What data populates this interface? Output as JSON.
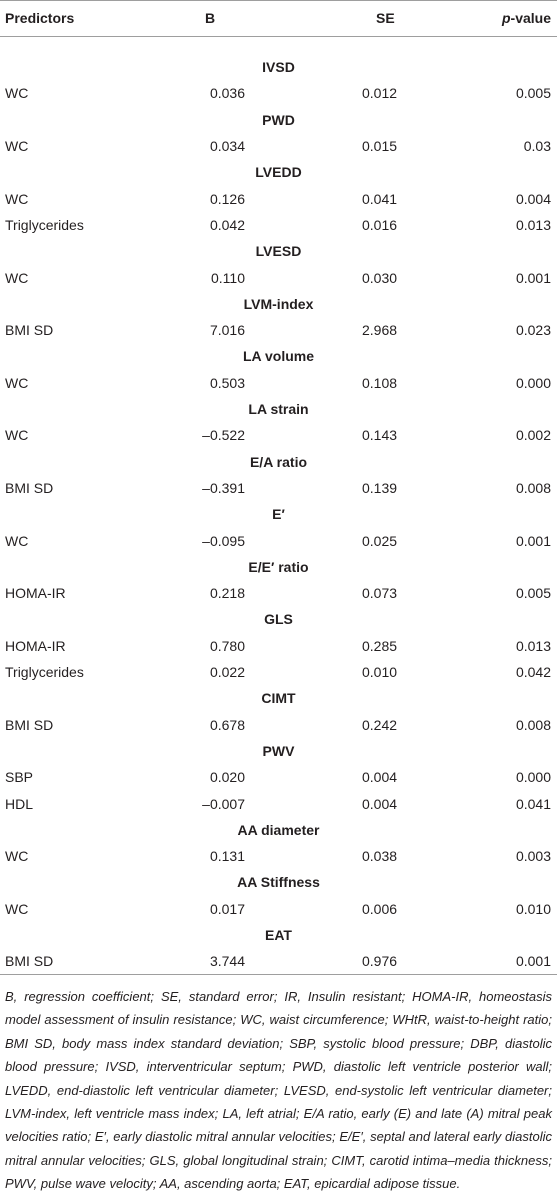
{
  "header": {
    "columns": [
      "Predictors",
      "B",
      "SE"
    ],
    "p_value": {
      "italic": "p",
      "text": "-value"
    }
  },
  "groups": [
    {
      "name": "IVSD",
      "rows": [
        [
          "WC",
          "0.036",
          "0.012",
          "0.005"
        ]
      ]
    },
    {
      "name": "PWD",
      "rows": [
        [
          "WC",
          "0.034",
          "0.015",
          "0.03"
        ]
      ]
    },
    {
      "name": "LVEDD",
      "rows": [
        [
          "WC",
          "0.126",
          "0.041",
          "0.004"
        ],
        [
          "Triglycerides",
          "0.042",
          "0.016",
          "0.013"
        ]
      ]
    },
    {
      "name": "LVESD",
      "rows": [
        [
          "WC",
          "0.110",
          "0.030",
          "0.001"
        ]
      ]
    },
    {
      "name": "LVM-index",
      "rows": [
        [
          "BMI SD",
          "7.016",
          "2.968",
          "0.023"
        ]
      ]
    },
    {
      "name": "LA volume",
      "rows": [
        [
          "WC",
          "0.503",
          "0.108",
          "0.000"
        ]
      ]
    },
    {
      "name": "LA strain",
      "rows": [
        [
          "WC",
          "–0.522",
          "0.143",
          "0.002"
        ]
      ]
    },
    {
      "name": "E/A ratio",
      "rows": [
        [
          "BMI SD",
          "–0.391",
          "0.139",
          "0.008"
        ]
      ]
    },
    {
      "name": "E′",
      "rows": [
        [
          "WC",
          "–0.095",
          "0.025",
          "0.001"
        ]
      ]
    },
    {
      "name": "E/E′ ratio",
      "rows": [
        [
          "HOMA-IR",
          "0.218",
          "0.073",
          "0.005"
        ]
      ]
    },
    {
      "name": "GLS",
      "rows": [
        [
          "HOMA-IR",
          "0.780",
          "0.285",
          "0.013"
        ],
        [
          "Triglycerides",
          "0.022",
          "0.010",
          "0.042"
        ]
      ]
    },
    {
      "name": "CIMT",
      "rows": [
        [
          "BMI SD",
          "0.678",
          "0.242",
          "0.008"
        ]
      ]
    },
    {
      "name": "PWV",
      "rows": [
        [
          "SBP",
          "0.020",
          "0.004",
          "0.000"
        ],
        [
          "HDL",
          "–0.007",
          "0.004",
          "0.041"
        ]
      ]
    },
    {
      "name": "AA diameter",
      "rows": [
        [
          "WC",
          "0.131",
          "0.038",
          "0.003"
        ]
      ]
    },
    {
      "name": "AA Stiffness",
      "rows": [
        [
          "WC",
          "0.017",
          "0.006",
          "0.010"
        ]
      ]
    },
    {
      "name": "EAT",
      "rows": [
        [
          "BMI SD",
          "3.744",
          "0.976",
          "0.001"
        ]
      ]
    }
  ],
  "footnote": "B, regression coefficient; SE, standard error; IR, Insulin resistant; HOMA-IR, homeostasis model assessment of insulin resistance; WC, waist circumference; WHtR, waist-to-height ratio; BMI SD, body mass index standard deviation; SBP, systolic blood pressure; DBP, diastolic blood pressure; IVSD, interventricular septum; PWD, diastolic left ventricle posterior wall; LVEDD, end-diastolic left ventricular diameter; LVESD, end-systolic left ventricular diameter; LVM-index, left ventricle mass index; LA, left atrial; E/A ratio, early (E) and late (A) mitral peak velocities ratio; E′, early diastolic mitral annular velocities; E/E′, septal and lateral early diastolic mitral annular velocities; GLS, global longitudinal strain; CIMT, carotid intima–media thickness; PWV, pulse wave velocity; AA, ascending aorta; EAT, epicardial adipose tissue."
}
